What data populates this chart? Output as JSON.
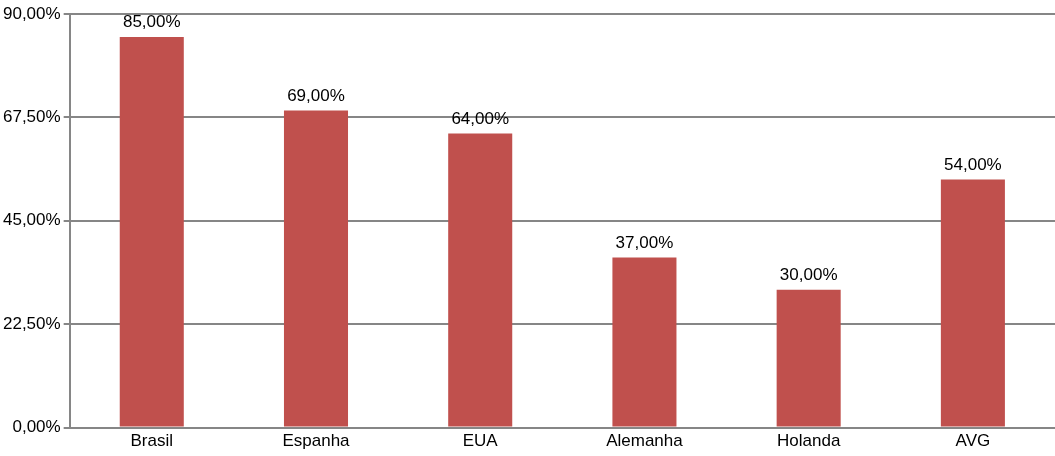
{
  "chart_data": {
    "type": "bar",
    "categories": [
      "Brasil",
      "Espanha",
      "EUA",
      "Alemanha",
      "Holanda",
      "AVG"
    ],
    "values": [
      85,
      69,
      64,
      37,
      30,
      54
    ],
    "value_labels": [
      "85,00%",
      "69,00%",
      "64,00%",
      "37,00%",
      "30,00%",
      "54,00%"
    ],
    "color": "#c0504d",
    "ylim": [
      0,
      90
    ],
    "yticks": [
      {
        "value": 0,
        "label": "0,00%"
      },
      {
        "value": 22.5,
        "label": "22,50%"
      },
      {
        "value": 45,
        "label": "45,00%"
      },
      {
        "value": 67.5,
        "label": "67,50%"
      },
      {
        "value": 90,
        "label": "90,00%"
      }
    ],
    "grid": "y",
    "legend": false
  }
}
